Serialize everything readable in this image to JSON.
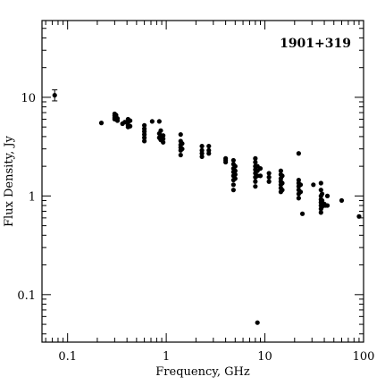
{
  "chart_data": {
    "type": "scatter",
    "title": "1901+319",
    "xlabel": "Frequency, GHz",
    "ylabel": "Flux Density, Jy",
    "xscale": "log",
    "yscale": "log",
    "xlim": [
      0.055,
      100
    ],
    "ylim": [
      0.033,
      60
    ],
    "xticks": [
      {
        "value": 0.1,
        "label": "0.1"
      },
      {
        "value": 1,
        "label": "1"
      },
      {
        "value": 10,
        "label": "10"
      },
      {
        "value": 100,
        "label": "100"
      }
    ],
    "yticks": [
      {
        "value": 0.1,
        "label": "0.1"
      },
      {
        "value": 1,
        "label": "1"
      },
      {
        "value": 10,
        "label": "10"
      }
    ],
    "grid": false,
    "series": [
      {
        "marker": "filled-circle",
        "color": "#000000",
        "points": [
          {
            "x": 0.074,
            "y": 10.5,
            "yerr": [
              9.2,
              11.9
            ]
          },
          {
            "x": 0.22,
            "y": 5.5
          },
          {
            "x": 0.3,
            "y": 6.8
          },
          {
            "x": 0.3,
            "y": 6.5
          },
          {
            "x": 0.3,
            "y": 6.2
          },
          {
            "x": 0.3,
            "y": 6.0
          },
          {
            "x": 0.31,
            "y": 6.6
          },
          {
            "x": 0.32,
            "y": 6.1
          },
          {
            "x": 0.32,
            "y": 5.8
          },
          {
            "x": 0.36,
            "y": 5.4
          },
          {
            "x": 0.38,
            "y": 5.6
          },
          {
            "x": 0.41,
            "y": 6.0
          },
          {
            "x": 0.41,
            "y": 5.6
          },
          {
            "x": 0.41,
            "y": 5.2
          },
          {
            "x": 0.41,
            "y": 5.0
          },
          {
            "x": 0.43,
            "y": 5.8
          },
          {
            "x": 0.43,
            "y": 5.1
          },
          {
            "x": 0.6,
            "y": 5.2
          },
          {
            "x": 0.6,
            "y": 4.8
          },
          {
            "x": 0.6,
            "y": 4.5
          },
          {
            "x": 0.6,
            "y": 4.2
          },
          {
            "x": 0.6,
            "y": 3.9
          },
          {
            "x": 0.6,
            "y": 3.6
          },
          {
            "x": 0.72,
            "y": 5.7
          },
          {
            "x": 0.85,
            "y": 5.7
          },
          {
            "x": 0.85,
            "y": 4.3
          },
          {
            "x": 0.85,
            "y": 3.9
          },
          {
            "x": 0.88,
            "y": 4.6
          },
          {
            "x": 0.88,
            "y": 4.1
          },
          {
            "x": 0.88,
            "y": 3.7
          },
          {
            "x": 0.93,
            "y": 4.1
          },
          {
            "x": 0.93,
            "y": 3.8
          },
          {
            "x": 0.93,
            "y": 3.5
          },
          {
            "x": 1.4,
            "y": 4.2
          },
          {
            "x": 1.4,
            "y": 3.6
          },
          {
            "x": 1.4,
            "y": 3.3
          },
          {
            "x": 1.4,
            "y": 3.1
          },
          {
            "x": 1.4,
            "y": 2.9
          },
          {
            "x": 1.4,
            "y": 2.6
          },
          {
            "x": 1.45,
            "y": 3.4
          },
          {
            "x": 1.45,
            "y": 3.0
          },
          {
            "x": 2.3,
            "y": 3.2
          },
          {
            "x": 2.3,
            "y": 2.9
          },
          {
            "x": 2.3,
            "y": 2.7
          },
          {
            "x": 2.3,
            "y": 2.5
          },
          {
            "x": 2.7,
            "y": 3.2
          },
          {
            "x": 2.7,
            "y": 2.9
          },
          {
            "x": 2.7,
            "y": 2.7
          },
          {
            "x": 4.0,
            "y": 2.4
          },
          {
            "x": 4.0,
            "y": 2.3
          },
          {
            "x": 4.0,
            "y": 2.2
          },
          {
            "x": 4.8,
            "y": 2.3
          },
          {
            "x": 4.8,
            "y": 2.1
          },
          {
            "x": 4.8,
            "y": 1.9
          },
          {
            "x": 4.8,
            "y": 1.75
          },
          {
            "x": 4.8,
            "y": 1.6
          },
          {
            "x": 4.8,
            "y": 1.45
          },
          {
            "x": 4.8,
            "y": 1.3
          },
          {
            "x": 4.8,
            "y": 1.15
          },
          {
            "x": 5.0,
            "y": 2.0
          },
          {
            "x": 5.0,
            "y": 1.8
          },
          {
            "x": 5.0,
            "y": 1.65
          },
          {
            "x": 5.0,
            "y": 1.5
          },
          {
            "x": 8.0,
            "y": 2.4
          },
          {
            "x": 8.0,
            "y": 2.2
          },
          {
            "x": 8.0,
            "y": 2.0
          },
          {
            "x": 8.0,
            "y": 1.85
          },
          {
            "x": 8.0,
            "y": 1.7
          },
          {
            "x": 8.0,
            "y": 1.55
          },
          {
            "x": 8.0,
            "y": 1.4
          },
          {
            "x": 8.0,
            "y": 1.25
          },
          {
            "x": 8.4,
            "y": 2.0
          },
          {
            "x": 8.4,
            "y": 1.8
          },
          {
            "x": 8.4,
            "y": 1.6
          },
          {
            "x": 8.4,
            "y": 0.052
          },
          {
            "x": 9.0,
            "y": 1.9
          },
          {
            "x": 9.0,
            "y": 1.6
          },
          {
            "x": 11.0,
            "y": 1.7
          },
          {
            "x": 11.0,
            "y": 1.55
          },
          {
            "x": 11.0,
            "y": 1.4
          },
          {
            "x": 14.5,
            "y": 1.8
          },
          {
            "x": 14.5,
            "y": 1.65
          },
          {
            "x": 14.5,
            "y": 1.5
          },
          {
            "x": 14.5,
            "y": 1.4
          },
          {
            "x": 14.5,
            "y": 1.3
          },
          {
            "x": 14.5,
            "y": 1.2
          },
          {
            "x": 14.5,
            "y": 1.1
          },
          {
            "x": 15.0,
            "y": 1.6
          },
          {
            "x": 15.0,
            "y": 1.35
          },
          {
            "x": 15.0,
            "y": 1.15
          },
          {
            "x": 22.0,
            "y": 2.7
          },
          {
            "x": 22.0,
            "y": 1.45
          },
          {
            "x": 22.0,
            "y": 1.35
          },
          {
            "x": 22.0,
            "y": 1.25
          },
          {
            "x": 22.0,
            "y": 1.15
          },
          {
            "x": 22.0,
            "y": 1.05
          },
          {
            "x": 22.0,
            "y": 0.95
          },
          {
            "x": 23.0,
            "y": 1.3
          },
          {
            "x": 23.0,
            "y": 1.1
          },
          {
            "x": 24.0,
            "y": 0.66
          },
          {
            "x": 31.0,
            "y": 1.3
          },
          {
            "x": 37.0,
            "y": 1.35
          },
          {
            "x": 37.0,
            "y": 1.15
          },
          {
            "x": 37.0,
            "y": 1.0
          },
          {
            "x": 37.0,
            "y": 0.92
          },
          {
            "x": 37.0,
            "y": 0.86
          },
          {
            "x": 37.0,
            "y": 0.8
          },
          {
            "x": 37.0,
            "y": 0.74
          },
          {
            "x": 37.0,
            "y": 0.68
          },
          {
            "x": 38.0,
            "y": 1.05
          },
          {
            "x": 38.0,
            "y": 0.9
          },
          {
            "x": 38.0,
            "y": 0.78
          },
          {
            "x": 40.0,
            "y": 0.83
          },
          {
            "x": 41.0,
            "y": 0.8
          },
          {
            "x": 43.0,
            "y": 1.0
          },
          {
            "x": 43.0,
            "y": 0.8
          },
          {
            "x": 60.0,
            "y": 0.9
          },
          {
            "x": 90.0,
            "y": 0.62
          }
        ]
      }
    ]
  }
}
